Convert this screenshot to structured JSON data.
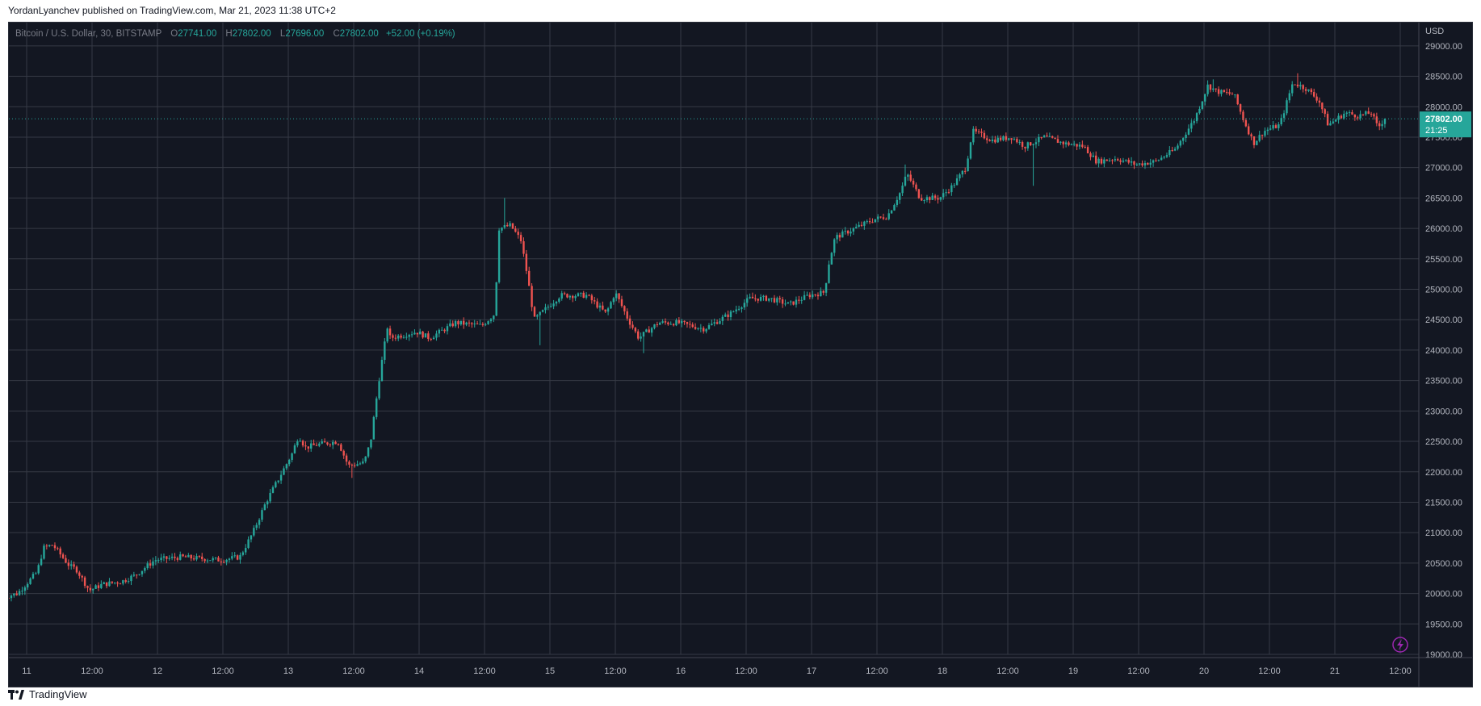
{
  "header": {
    "publisher_line": "YordanLyanchev published on TradingView.com, Mar 21, 2023 11:38 UTC+2"
  },
  "symbol": {
    "description": "Bitcoin / U.S. Dollar, 30, BITSTAMP",
    "o_label": "O",
    "o_value": "27741.00",
    "h_label": "H",
    "h_value": "27802.00",
    "l_label": "L",
    "l_value": "27696.00",
    "c_label": "C",
    "c_value": "27802.00",
    "change": "+52.00 (+0.19%)"
  },
  "price_scale": {
    "currency": "USD",
    "ticks": [
      "29000.00",
      "28500.00",
      "28000.00",
      "27500.00",
      "27000.00",
      "26500.00",
      "26000.00",
      "25500.00",
      "25000.00",
      "24500.00",
      "24000.00",
      "23500.00",
      "23000.00",
      "22500.00",
      "22000.00",
      "21500.00",
      "21000.00",
      "20500.00",
      "20000.00",
      "19500.00",
      "19000.00"
    ]
  },
  "last_price": {
    "value": "27802.00",
    "countdown": "21:25"
  },
  "time_scale": {
    "labels": [
      "11",
      "12:00",
      "12",
      "12:00",
      "13",
      "12:00",
      "14",
      "12:00",
      "15",
      "12:00",
      "16",
      "12:00",
      "17",
      "12:00",
      "18",
      "12:00",
      "19",
      "12:00",
      "20",
      "12:00",
      "21",
      "12:00"
    ]
  },
  "footer": {
    "brand": "TradingView"
  },
  "colors": {
    "background": "#131722",
    "grid": "#363a45",
    "up": "#26a69a",
    "down": "#ef5350",
    "axis_text": "#b2b5be",
    "last_price_bg": "#26a69a",
    "lightning": "#9c27b0"
  },
  "chart_data": {
    "type": "candlestick",
    "title": "Bitcoin / U.S. Dollar, 30, BITSTAMP",
    "ylabel": "USD",
    "ylim": [
      19000,
      29250
    ],
    "xlim_days": [
      10.82,
      21.4
    ],
    "grid": true,
    "anchors": [
      {
        "day": 10.82,
        "price": 19930
      },
      {
        "day": 10.95,
        "price": 20000
      },
      {
        "day": 11.1,
        "price": 20350
      },
      {
        "day": 11.15,
        "price": 20750
      },
      {
        "day": 11.22,
        "price": 20800
      },
      {
        "day": 11.35,
        "price": 20450
      },
      {
        "day": 11.4,
        "price": 20400
      },
      {
        "day": 11.5,
        "price": 20050
      },
      {
        "day": 11.6,
        "price": 20150
      },
      {
        "day": 11.75,
        "price": 20200
      },
      {
        "day": 11.85,
        "price": 20300
      },
      {
        "day": 12.0,
        "price": 20550
      },
      {
        "day": 12.2,
        "price": 20600
      },
      {
        "day": 12.5,
        "price": 20550
      },
      {
        "day": 12.65,
        "price": 20600
      },
      {
        "day": 12.75,
        "price": 21000
      },
      {
        "day": 12.85,
        "price": 21500
      },
      {
        "day": 12.95,
        "price": 21900
      },
      {
        "day": 13.05,
        "price": 22300
      },
      {
        "day": 13.1,
        "price": 22600
      },
      {
        "day": 13.15,
        "price": 22400
      },
      {
        "day": 13.25,
        "price": 22450
      },
      {
        "day": 13.4,
        "price": 22500
      },
      {
        "day": 13.48,
        "price": 22100
      },
      {
        "day": 13.6,
        "price": 22150
      },
      {
        "day": 13.65,
        "price": 22500
      },
      {
        "day": 13.72,
        "price": 23600
      },
      {
        "day": 13.78,
        "price": 24400
      },
      {
        "day": 13.8,
        "price": 24200
      },
      {
        "day": 14.0,
        "price": 24300
      },
      {
        "day": 14.1,
        "price": 24200
      },
      {
        "day": 14.3,
        "price": 24450
      },
      {
        "day": 14.5,
        "price": 24400
      },
      {
        "day": 14.6,
        "price": 24600
      },
      {
        "day": 14.63,
        "price": 26000
      },
      {
        "day": 14.72,
        "price": 26050
      },
      {
        "day": 14.8,
        "price": 25800
      },
      {
        "day": 14.85,
        "price": 25200
      },
      {
        "day": 14.9,
        "price": 24500
      },
      {
        "day": 15.0,
        "price": 24700
      },
      {
        "day": 15.1,
        "price": 24900
      },
      {
        "day": 15.3,
        "price": 24900
      },
      {
        "day": 15.45,
        "price": 24600
      },
      {
        "day": 15.52,
        "price": 24950
      },
      {
        "day": 15.62,
        "price": 24500
      },
      {
        "day": 15.7,
        "price": 24200
      },
      {
        "day": 15.85,
        "price": 24450
      },
      {
        "day": 16.0,
        "price": 24450
      },
      {
        "day": 16.2,
        "price": 24350
      },
      {
        "day": 16.4,
        "price": 24600
      },
      {
        "day": 16.55,
        "price": 24850
      },
      {
        "day": 16.7,
        "price": 24850
      },
      {
        "day": 16.85,
        "price": 24750
      },
      {
        "day": 17.0,
        "price": 24900
      },
      {
        "day": 17.12,
        "price": 24950
      },
      {
        "day": 17.15,
        "price": 25400
      },
      {
        "day": 17.2,
        "price": 25850
      },
      {
        "day": 17.35,
        "price": 26000
      },
      {
        "day": 17.5,
        "price": 26150
      },
      {
        "day": 17.6,
        "price": 26200
      },
      {
        "day": 17.7,
        "price": 26600
      },
      {
        "day": 17.75,
        "price": 26900
      },
      {
        "day": 17.85,
        "price": 26500
      },
      {
        "day": 18.0,
        "price": 26500
      },
      {
        "day": 18.1,
        "price": 26700
      },
      {
        "day": 18.2,
        "price": 27000
      },
      {
        "day": 18.25,
        "price": 27600
      },
      {
        "day": 18.4,
        "price": 27450
      },
      {
        "day": 18.55,
        "price": 27500
      },
      {
        "day": 18.65,
        "price": 27350
      },
      {
        "day": 18.8,
        "price": 27500
      },
      {
        "day": 18.95,
        "price": 27400
      },
      {
        "day": 19.1,
        "price": 27350
      },
      {
        "day": 19.2,
        "price": 27100
      },
      {
        "day": 19.35,
        "price": 27150
      },
      {
        "day": 19.5,
        "price": 27050
      },
      {
        "day": 19.65,
        "price": 27100
      },
      {
        "day": 19.8,
        "price": 27300
      },
      {
        "day": 19.95,
        "price": 27800
      },
      {
        "day": 20.05,
        "price": 28350
      },
      {
        "day": 20.12,
        "price": 28250
      },
      {
        "day": 20.25,
        "price": 28200
      },
      {
        "day": 20.32,
        "price": 27800
      },
      {
        "day": 20.4,
        "price": 27400
      },
      {
        "day": 20.48,
        "price": 27600
      },
      {
        "day": 20.6,
        "price": 27700
      },
      {
        "day": 20.7,
        "price": 28400
      },
      {
        "day": 20.8,
        "price": 28300
      },
      {
        "day": 20.9,
        "price": 28100
      },
      {
        "day": 20.97,
        "price": 27700
      },
      {
        "day": 21.1,
        "price": 27900
      },
      {
        "day": 21.2,
        "price": 27850
      },
      {
        "day": 21.3,
        "price": 27900
      },
      {
        "day": 21.35,
        "price": 27650
      },
      {
        "day": 21.4,
        "price": 27802
      }
    ],
    "spikes": [
      {
        "day": 14.65,
        "high": 26500
      },
      {
        "day": 14.92,
        "low": 24080
      },
      {
        "day": 15.72,
        "low": 23950
      },
      {
        "day": 18.7,
        "low": 26700
      },
      {
        "day": 13.48,
        "low": 21900
      },
      {
        "day": 17.72,
        "high": 27050
      },
      {
        "day": 20.08,
        "high": 28450
      },
      {
        "day": 20.72,
        "high": 28550
      }
    ]
  }
}
